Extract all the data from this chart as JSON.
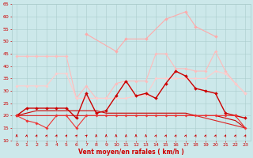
{
  "x": [
    0,
    1,
    2,
    3,
    4,
    5,
    6,
    7,
    8,
    9,
    10,
    11,
    12,
    13,
    14,
    15,
    16,
    17,
    18,
    19,
    20,
    21,
    22,
    23
  ],
  "series": [
    {
      "name": "rafales_top",
      "color": "#ffaaaa",
      "linewidth": 0.8,
      "markersize": 2.0,
      "marker": "D",
      "y": [
        null,
        null,
        null,
        null,
        null,
        null,
        null,
        53,
        null,
        null,
        46,
        51,
        null,
        51,
        null,
        59,
        null,
        62,
        56,
        null,
        52,
        null,
        null,
        null
      ]
    },
    {
      "name": "rafales_upper",
      "color": "#ffbbbb",
      "linewidth": 0.8,
      "markersize": 1.8,
      "marker": "D",
      "y": [
        44,
        44,
        44,
        44,
        44,
        44,
        27,
        32,
        27,
        27,
        33,
        34,
        34,
        34,
        45,
        45,
        39,
        39,
        38,
        38,
        46,
        38,
        33,
        29
      ]
    },
    {
      "name": "rafales_lower",
      "color": "#ffcccc",
      "linewidth": 0.8,
      "markersize": 1.8,
      "marker": "D",
      "y": [
        32,
        32,
        32,
        32,
        37,
        37,
        27,
        27,
        27,
        27,
        27,
        27,
        28,
        28,
        35,
        35,
        35,
        35,
        35,
        35,
        38,
        37,
        33,
        29
      ]
    },
    {
      "name": "vent_moyen",
      "color": "#cc0000",
      "linewidth": 1.0,
      "markersize": 2.0,
      "marker": "D",
      "y": [
        20,
        23,
        23,
        23,
        23,
        23,
        19,
        29,
        21,
        22,
        28,
        34,
        28,
        29,
        27,
        33,
        38,
        36,
        31,
        30,
        29,
        21,
        20,
        19
      ]
    },
    {
      "name": "vent_flat1",
      "color": "#dd2222",
      "linewidth": 0.8,
      "markersize": 0,
      "marker": null,
      "y": [
        20,
        20,
        20,
        20,
        20,
        20,
        20,
        20,
        20,
        20,
        20,
        20,
        20,
        20,
        20,
        20,
        20,
        20,
        20,
        19,
        18,
        17,
        16,
        15
      ]
    },
    {
      "name": "vent_flat2",
      "color": "#cc0000",
      "linewidth": 0.8,
      "markersize": 0,
      "marker": null,
      "y": [
        20,
        21,
        22,
        22,
        22,
        22,
        22,
        22,
        22,
        21,
        21,
        21,
        21,
        21,
        21,
        21,
        21,
        21,
        20,
        20,
        20,
        19,
        18,
        15
      ]
    },
    {
      "name": "vent_min",
      "color": "#ee3333",
      "linewidth": 0.8,
      "markersize": 1.8,
      "marker": "D",
      "y": [
        20,
        18,
        17,
        15,
        20,
        20,
        15,
        20,
        20,
        20,
        20,
        20,
        20,
        20,
        20,
        20,
        20,
        20,
        20,
        20,
        20,
        20,
        20,
        15
      ]
    }
  ],
  "arrow_angles_deg": [
    90,
    80,
    70,
    65,
    70,
    65,
    60,
    55,
    90,
    90,
    90,
    90,
    90,
    90,
    70,
    70,
    70,
    70,
    70,
    70,
    70,
    70,
    70,
    70
  ],
  "xlabel": "Vent moyen/en rafales ( km/h )",
  "ylim": [
    10,
    65
  ],
  "yticks": [
    10,
    15,
    20,
    25,
    30,
    35,
    40,
    45,
    50,
    55,
    60,
    65
  ],
  "xticks": [
    0,
    1,
    2,
    3,
    4,
    5,
    6,
    7,
    8,
    9,
    10,
    11,
    12,
    13,
    14,
    15,
    16,
    17,
    18,
    19,
    20,
    21,
    22,
    23
  ],
  "bg_color": "#cce8ea",
  "grid_color": "#aacccc",
  "text_color": "#cc0000"
}
